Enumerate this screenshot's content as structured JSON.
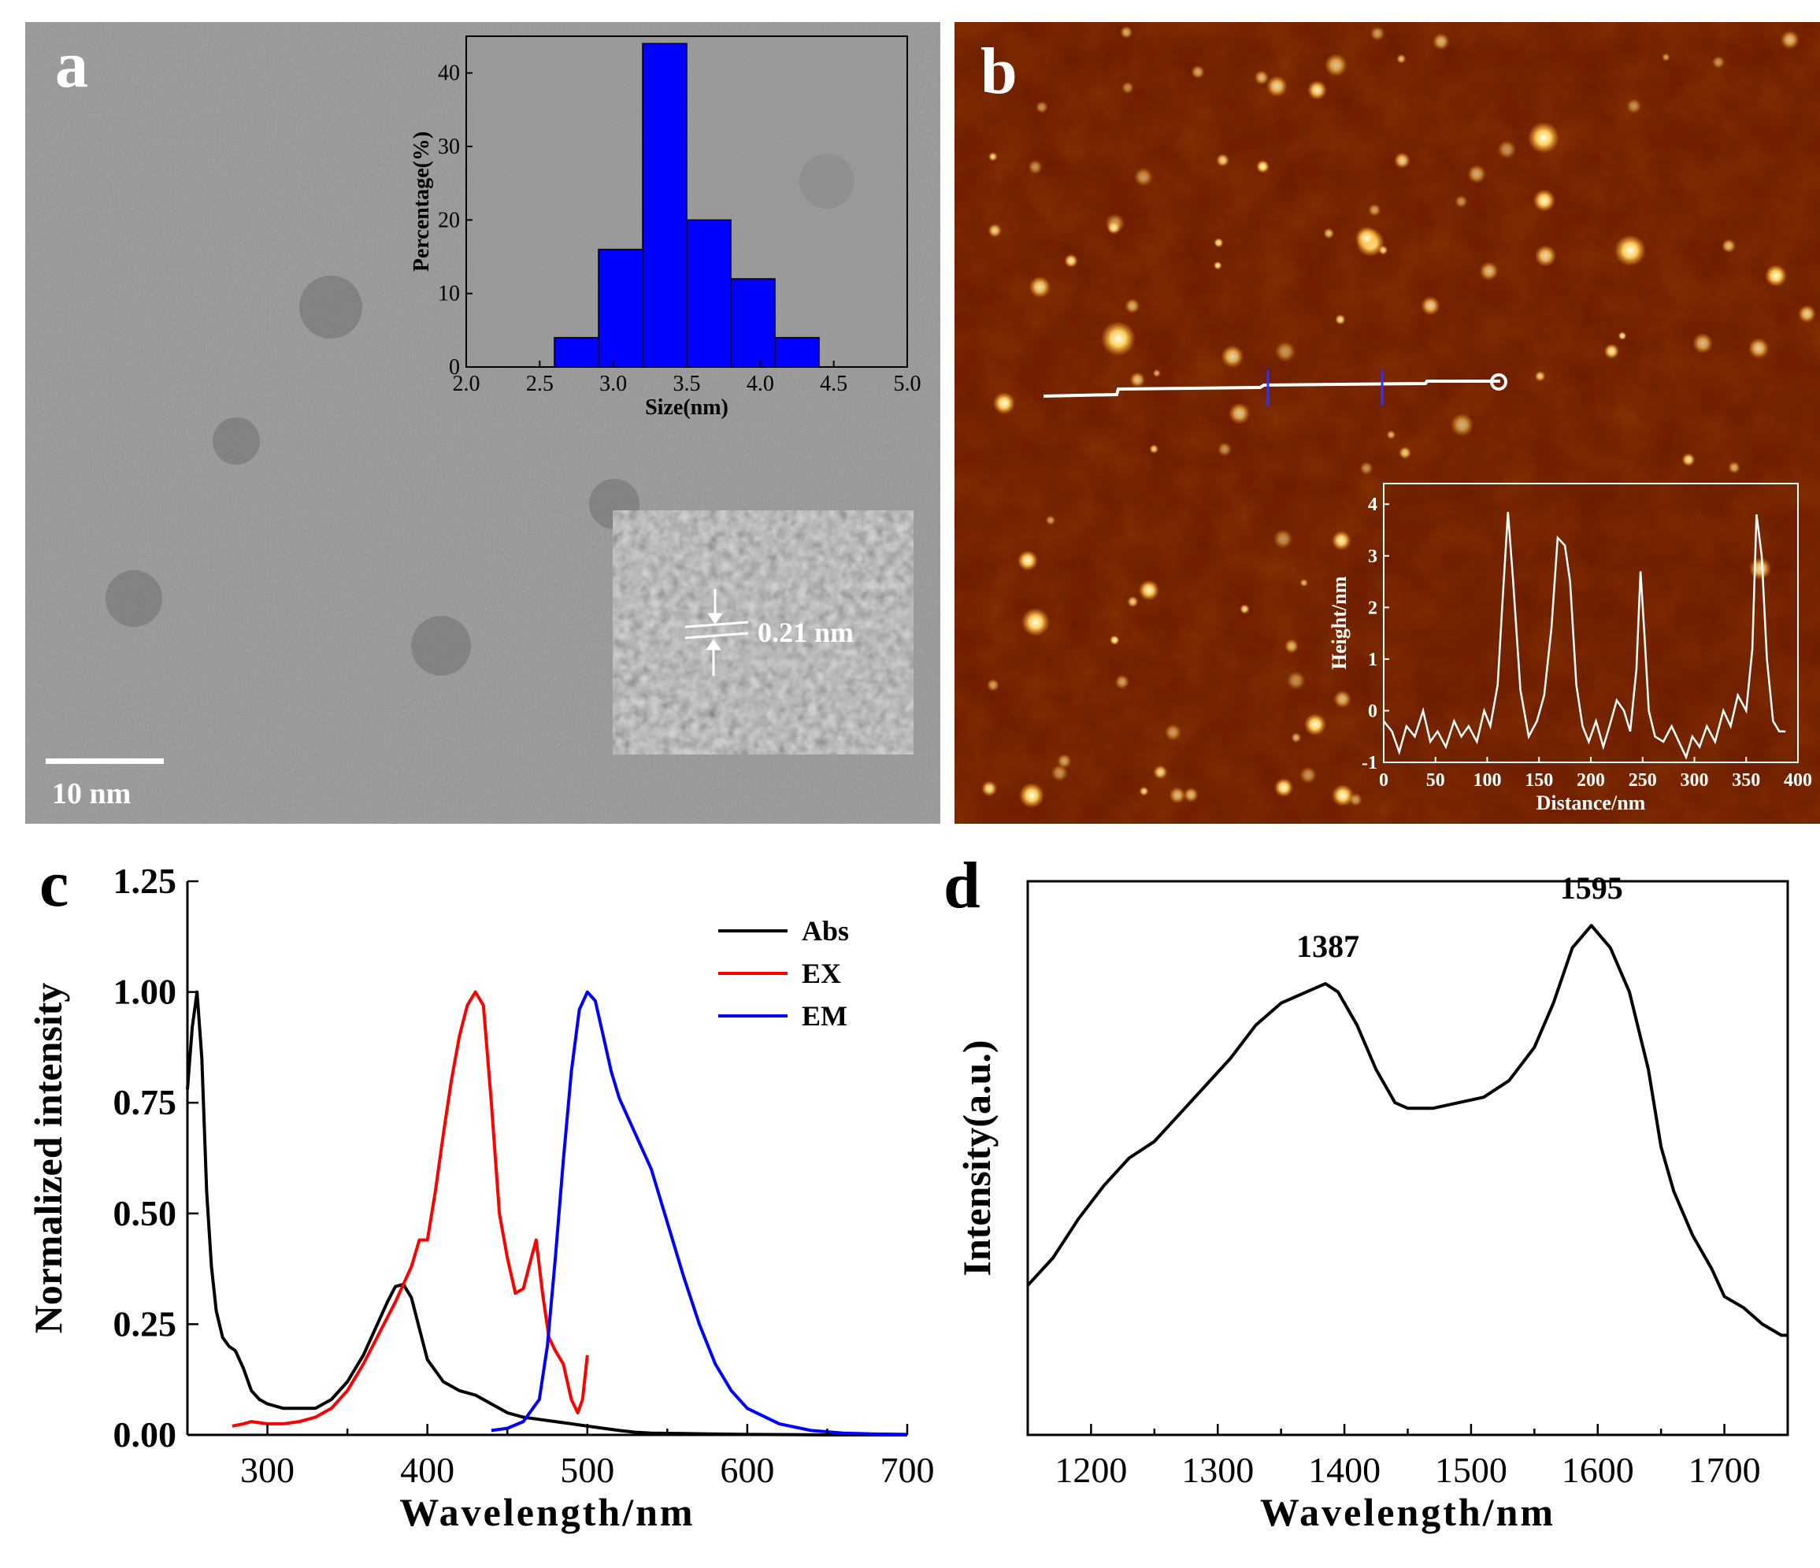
{
  "panels": {
    "a": {
      "letter": "a",
      "scale_bar_label": "10 nm",
      "lattice_label": "0.21 nm"
    },
    "b": {
      "letter": "b"
    },
    "c": {
      "letter": "c"
    },
    "d": {
      "letter": "d"
    }
  },
  "colors": {
    "tem_gray": "#8a8a8a",
    "afm_background": "#6e1c00",
    "histogram_bar": "#0000ff",
    "abs": "#000000",
    "ex": "#ff0000",
    "em": "#0000ff"
  },
  "chart_data": [
    {
      "id": "size-histogram",
      "type": "bar",
      "xlabel": "Size(nm)",
      "ylabel": "Percentage(%)",
      "xlim": [
        2.0,
        5.0
      ],
      "ylim": [
        0,
        45
      ],
      "xticks": [
        "2.0",
        "2.5",
        "3.0",
        "3.5",
        "4.0",
        "4.5",
        "5.0"
      ],
      "yticks": [
        "0",
        "10",
        "20",
        "30",
        "40"
      ],
      "bin_width": 0.3,
      "x": [
        2.75,
        3.05,
        3.35,
        3.65,
        3.95,
        4.25
      ],
      "values": [
        4,
        16,
        44,
        20,
        12,
        4
      ]
    },
    {
      "id": "height-profile",
      "type": "line",
      "xlabel": "Distance/nm",
      "ylabel": "Height/nm",
      "xlim": [
        0,
        400
      ],
      "ylim": [
        -1,
        4.4
      ],
      "xticks": [
        "0",
        "50",
        "100",
        "150",
        "200",
        "250",
        "300",
        "350",
        "400"
      ],
      "yticks": [
        "-1",
        "0",
        "1",
        "2",
        "3",
        "4"
      ],
      "x": [
        0,
        8,
        15,
        22,
        30,
        38,
        45,
        52,
        60,
        68,
        75,
        82,
        90,
        97,
        103,
        110,
        115,
        120,
        125,
        132,
        140,
        148,
        155,
        162,
        168,
        175,
        180,
        186,
        192,
        198,
        205,
        212,
        218,
        225,
        232,
        238,
        244,
        248,
        252,
        256,
        262,
        270,
        278,
        285,
        292,
        298,
        305,
        312,
        320,
        328,
        335,
        342,
        350,
        356,
        360,
        365,
        370,
        376,
        382,
        388
      ],
      "y": [
        -0.2,
        -0.4,
        -0.8,
        -0.3,
        -0.5,
        0.0,
        -0.6,
        -0.4,
        -0.7,
        -0.2,
        -0.5,
        -0.3,
        -0.6,
        0.0,
        -0.3,
        0.5,
        2.2,
        3.85,
        2.5,
        0.4,
        -0.5,
        -0.2,
        0.3,
        1.6,
        3.35,
        3.2,
        2.5,
        0.5,
        -0.3,
        -0.6,
        -0.2,
        -0.7,
        -0.3,
        0.2,
        0.0,
        -0.4,
        0.8,
        2.7,
        1.4,
        0.0,
        -0.5,
        -0.6,
        -0.3,
        -0.6,
        -0.9,
        -0.5,
        -0.7,
        -0.3,
        -0.6,
        0.0,
        -0.3,
        0.3,
        0.0,
        1.2,
        3.8,
        3.0,
        1.0,
        -0.2,
        -0.4,
        -0.4
      ]
    },
    {
      "id": "optical-spectra",
      "type": "line",
      "xlabel": "Wavelength/nm",
      "ylabel": "Normalized intensity",
      "xlim": [
        250,
        700
      ],
      "ylim": [
        0,
        1.25
      ],
      "xticks": [
        "300",
        "400",
        "500",
        "600",
        "700"
      ],
      "yticks": [
        "0.00",
        "0.25",
        "0.50",
        "0.75",
        "1.00",
        "1.25"
      ],
      "legend_position": "top-right",
      "series": [
        {
          "name": "Abs",
          "x": [
            250,
            253,
            256,
            259,
            262,
            265,
            268,
            272,
            276,
            280,
            285,
            290,
            295,
            300,
            310,
            320,
            330,
            340,
            350,
            360,
            370,
            375,
            380,
            385,
            390,
            395,
            400,
            410,
            420,
            430,
            440,
            450,
            460,
            470,
            480,
            490,
            500,
            510,
            520,
            530,
            540,
            560,
            580,
            600,
            650,
            700
          ],
          "y": [
            0.78,
            0.92,
            1.0,
            0.85,
            0.55,
            0.38,
            0.28,
            0.22,
            0.2,
            0.19,
            0.15,
            0.1,
            0.08,
            0.07,
            0.06,
            0.06,
            0.06,
            0.08,
            0.12,
            0.18,
            0.26,
            0.3,
            0.335,
            0.34,
            0.31,
            0.24,
            0.17,
            0.12,
            0.1,
            0.09,
            0.07,
            0.05,
            0.04,
            0.035,
            0.03,
            0.025,
            0.02,
            0.015,
            0.01,
            0.006,
            0.004,
            0.003,
            0.002,
            0.001,
            0.0,
            0.0
          ]
        },
        {
          "name": "EX",
          "x": [
            278,
            285,
            290,
            300,
            310,
            320,
            330,
            340,
            350,
            360,
            370,
            380,
            390,
            395,
            400,
            405,
            410,
            415,
            420,
            425,
            430,
            435,
            440,
            445,
            450,
            455,
            460,
            465,
            468,
            472,
            476,
            480,
            485,
            490,
            494,
            497,
            500
          ],
          "y": [
            0.02,
            0.025,
            0.03,
            0.025,
            0.025,
            0.03,
            0.04,
            0.06,
            0.1,
            0.16,
            0.23,
            0.3,
            0.38,
            0.44,
            0.44,
            0.55,
            0.68,
            0.8,
            0.9,
            0.97,
            1.0,
            0.97,
            0.75,
            0.5,
            0.4,
            0.32,
            0.33,
            0.4,
            0.44,
            0.32,
            0.22,
            0.19,
            0.16,
            0.08,
            0.05,
            0.08,
            0.18
          ]
        },
        {
          "name": "EM",
          "x": [
            440,
            450,
            460,
            470,
            475,
            480,
            485,
            490,
            495,
            500,
            505,
            510,
            515,
            520,
            530,
            540,
            550,
            560,
            570,
            580,
            590,
            600,
            620,
            640,
            660,
            680,
            700
          ],
          "y": [
            0.01,
            0.015,
            0.03,
            0.08,
            0.2,
            0.4,
            0.62,
            0.82,
            0.96,
            1.0,
            0.98,
            0.9,
            0.82,
            0.76,
            0.68,
            0.6,
            0.48,
            0.36,
            0.25,
            0.16,
            0.1,
            0.06,
            0.025,
            0.01,
            0.004,
            0.002,
            0.001
          ]
        }
      ]
    },
    {
      "id": "raman-spectrum",
      "type": "line",
      "xlabel": "Wavelength/nm",
      "ylabel": "Intensity(a.u.)",
      "xlim": [
        1150,
        1750
      ],
      "ylim": [
        0,
        1
      ],
      "xticks": [
        "1200",
        "1300",
        "1400",
        "1500",
        "1600",
        "1700"
      ],
      "annotations": [
        {
          "text": "1387",
          "x": 1387
        },
        {
          "text": "1595",
          "x": 1595
        }
      ],
      "x": [
        1150,
        1170,
        1190,
        1210,
        1230,
        1250,
        1270,
        1290,
        1310,
        1330,
        1350,
        1370,
        1385,
        1395,
        1410,
        1425,
        1440,
        1450,
        1470,
        1490,
        1510,
        1530,
        1550,
        1565,
        1580,
        1595,
        1610,
        1625,
        1640,
        1650,
        1660,
        1675,
        1690,
        1700,
        1715,
        1730,
        1745,
        1750
      ],
      "y": [
        0.27,
        0.32,
        0.39,
        0.45,
        0.5,
        0.53,
        0.58,
        0.63,
        0.68,
        0.74,
        0.78,
        0.8,
        0.815,
        0.8,
        0.74,
        0.66,
        0.6,
        0.59,
        0.59,
        0.6,
        0.61,
        0.64,
        0.7,
        0.78,
        0.88,
        0.92,
        0.88,
        0.8,
        0.66,
        0.52,
        0.44,
        0.36,
        0.3,
        0.25,
        0.23,
        0.2,
        0.18,
        0.18
      ]
    }
  ]
}
